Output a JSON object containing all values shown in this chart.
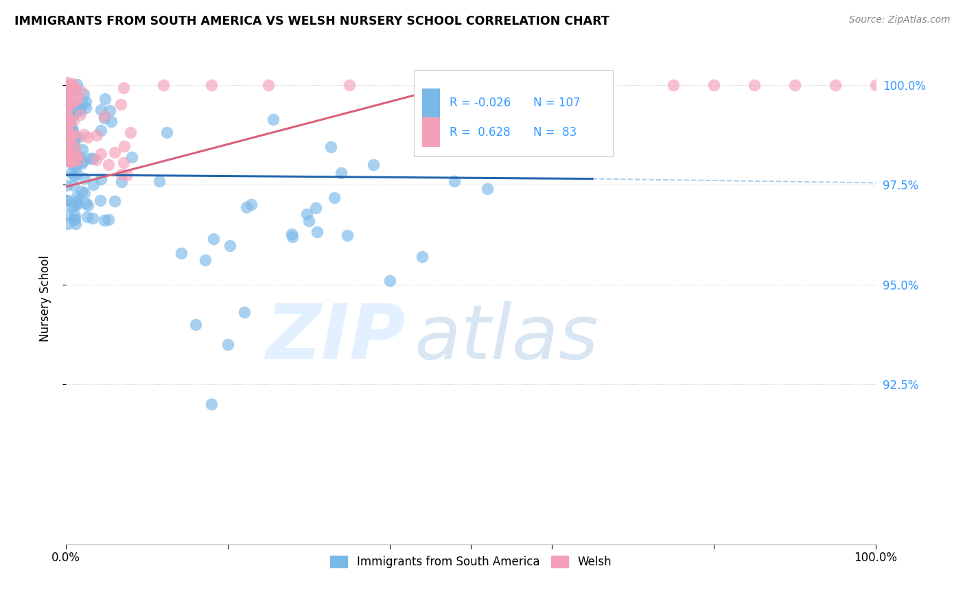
{
  "title": "IMMIGRANTS FROM SOUTH AMERICA VS WELSH NURSERY SCHOOL CORRELATION CHART",
  "source": "Source: ZipAtlas.com",
  "ylabel": "Nursery School",
  "legend_label1": "Immigrants from South America",
  "legend_label2": "Welsh",
  "R1": -0.026,
  "N1": 107,
  "R2": 0.628,
  "N2": 83,
  "color_blue": "#7ab8e8",
  "color_pink": "#f4a0b8",
  "color_line_blue": "#2166ac",
  "color_line_pink": "#d9607a",
  "color_dashed": "#aaccee",
  "color_grid": "#cccccc",
  "color_tick_right": "#3399ff",
  "ytick_labels": [
    "92.5%",
    "95.0%",
    "97.5%",
    "100.0%"
  ],
  "ytick_values": [
    0.925,
    0.95,
    0.975,
    1.0
  ],
  "xlim": [
    0.0,
    1.0
  ],
  "ylim": [
    0.885,
    1.008
  ]
}
